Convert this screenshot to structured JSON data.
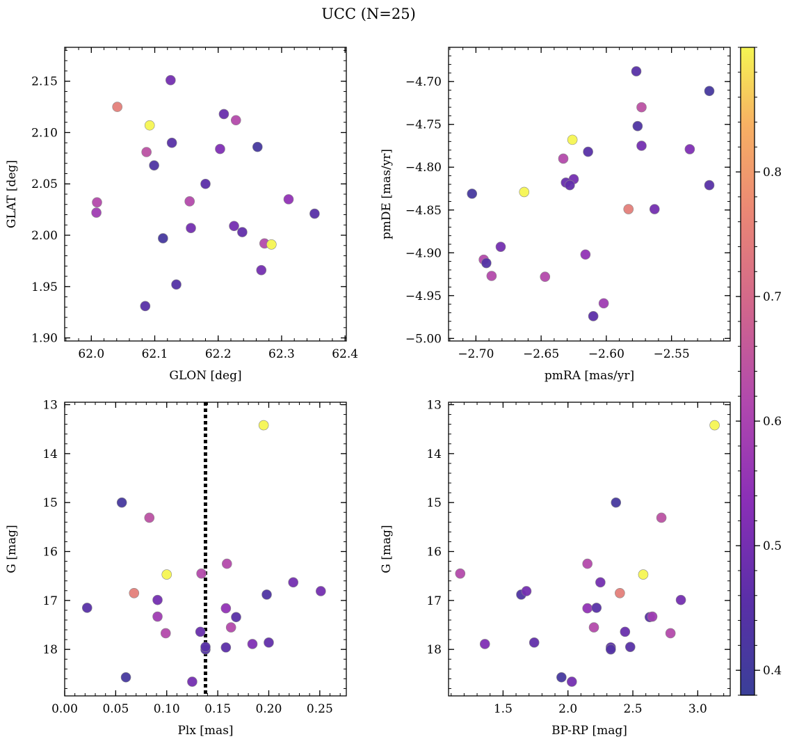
{
  "chart_data": {
    "type": "scatter",
    "title": "UCC (N=25)",
    "colorbar": {
      "range": [
        0.38,
        0.9
      ],
      "ticks": [
        "0.4",
        "0.5",
        "0.6",
        "0.7",
        "0.8"
      ],
      "tick_values": [
        0.4,
        0.5,
        0.6,
        0.7,
        0.8
      ],
      "colormap": "plasma"
    },
    "stars": [
      {
        "glon": 62.125,
        "glat": 2.151,
        "pmra": -2.625,
        "pmde": -4.814,
        "plx": 0.091,
        "g": 16.99,
        "bprp": 2.87,
        "c": 0.5
      },
      {
        "glon": 62.041,
        "glat": 2.125,
        "pmra": -2.583,
        "pmde": -4.849,
        "plx": 0.068,
        "g": 16.85,
        "bprp": 2.4,
        "c": 0.75
      },
      {
        "glon": 62.092,
        "glat": 2.107,
        "pmra": -2.663,
        "pmde": -4.829,
        "plx": 0.1,
        "g": 16.47,
        "bprp": 2.58,
        "c": 0.9
      },
      {
        "glon": 62.209,
        "glat": 2.118,
        "pmra": -2.631,
        "pmde": -4.818,
        "plx": 0.133,
        "g": 17.64,
        "bprp": 2.44,
        "c": 0.48
      },
      {
        "glon": 62.228,
        "glat": 2.112,
        "pmra": -2.633,
        "pmde": -4.79,
        "plx": 0.134,
        "g": 16.45,
        "bprp": 1.17,
        "c": 0.62
      },
      {
        "glon": 62.087,
        "glat": 2.081,
        "pmra": -2.573,
        "pmde": -4.73,
        "plx": 0.083,
        "g": 15.31,
        "bprp": 2.72,
        "c": 0.64
      },
      {
        "glon": 62.127,
        "glat": 2.09,
        "pmra": -2.614,
        "pmde": -4.782,
        "plx": 0.168,
        "g": 17.34,
        "bprp": 2.63,
        "c": 0.45
      },
      {
        "glon": 62.203,
        "glat": 2.084,
        "pmra": -2.536,
        "pmde": -4.779,
        "plx": 0.184,
        "g": 17.89,
        "bprp": 1.36,
        "c": 0.52
      },
      {
        "glon": 62.262,
        "glat": 2.086,
        "pmra": -2.521,
        "pmde": -4.711,
        "plx": 0.056,
        "g": 15.0,
        "bprp": 2.37,
        "c": 0.41
      },
      {
        "glon": 62.099,
        "glat": 2.068,
        "pmra": -2.576,
        "pmde": -4.752,
        "plx": 0.198,
        "g": 16.88,
        "bprp": 1.64,
        "c": 0.43
      },
      {
        "glon": 62.009,
        "glat": 2.032,
        "pmra": -2.694,
        "pmde": -4.908,
        "plx": 0.159,
        "g": 16.25,
        "bprp": 2.15,
        "c": 0.62
      },
      {
        "glon": 62.008,
        "glat": 2.022,
        "pmra": -2.602,
        "pmde": -4.959,
        "plx": 0.091,
        "g": 17.33,
        "bprp": 2.65,
        "c": 0.58
      },
      {
        "glon": 62.18,
        "glat": 2.05,
        "pmra": -2.61,
        "pmde": -4.974,
        "plx": 0.158,
        "g": 17.96,
        "bprp": 2.33,
        "c": 0.46
      },
      {
        "glon": 62.155,
        "glat": 2.033,
        "pmra": -2.647,
        "pmde": -4.928,
        "plx": 0.163,
        "g": 17.55,
        "bprp": 2.2,
        "c": 0.62
      },
      {
        "glon": 62.311,
        "glat": 2.035,
        "pmra": -2.616,
        "pmde": -4.902,
        "plx": 0.158,
        "g": 17.16,
        "bprp": 2.15,
        "c": 0.55
      },
      {
        "glon": 62.352,
        "glat": 2.021,
        "pmra": -2.521,
        "pmde": -4.821,
        "plx": 0.022,
        "g": 17.15,
        "bprp": 2.22,
        "c": 0.45
      },
      {
        "glon": 62.157,
        "glat": 2.007,
        "pmra": -2.563,
        "pmde": -4.849,
        "plx": 0.224,
        "g": 16.63,
        "bprp": 2.25,
        "c": 0.5
      },
      {
        "glon": 62.225,
        "glat": 2.009,
        "pmra": -2.573,
        "pmde": -4.775,
        "plx": 0.251,
        "g": 16.81,
        "bprp": 1.68,
        "c": 0.5
      },
      {
        "glon": 62.238,
        "glat": 2.003,
        "pmra": -2.628,
        "pmde": -4.821,
        "plx": 0.2,
        "g": 17.86,
        "bprp": 1.74,
        "c": 0.47
      },
      {
        "glon": 62.113,
        "glat": 1.997,
        "pmra": -2.703,
        "pmde": -4.831,
        "plx": 0.06,
        "g": 18.57,
        "bprp": 1.95,
        "c": 0.41
      },
      {
        "glon": 62.273,
        "glat": 1.992,
        "pmra": -2.688,
        "pmde": -4.927,
        "plx": 0.099,
        "g": 17.67,
        "bprp": 2.79,
        "c": 0.62
      },
      {
        "glon": 62.284,
        "glat": 1.991,
        "pmra": -2.626,
        "pmde": -4.768,
        "plx": 0.195,
        "g": 13.42,
        "bprp": 3.13,
        "c": 0.9
      },
      {
        "glon": 62.268,
        "glat": 1.966,
        "pmra": -2.681,
        "pmde": -4.893,
        "plx": 0.125,
        "g": 18.66,
        "bprp": 2.03,
        "c": 0.5
      },
      {
        "glon": 62.134,
        "glat": 1.952,
        "pmra": -2.692,
        "pmde": -4.912,
        "plx": 0.138,
        "g": 18.0,
        "bprp": 2.33,
        "c": 0.44
      },
      {
        "glon": 62.085,
        "glat": 1.931,
        "pmra": -2.577,
        "pmde": -4.688,
        "plx": 0.138,
        "g": 17.95,
        "bprp": 2.48,
        "c": 0.45
      }
    ],
    "panels": [
      {
        "id": "glon-glat",
        "xkey": "glon",
        "ykey": "glat",
        "xlabel": "GLON [deg]",
        "ylabel": "GLAT [deg]",
        "xlim": [
          61.958,
          62.402
        ],
        "ylim": [
          1.897,
          2.183
        ],
        "xticks": [
          62.0,
          62.1,
          62.2,
          62.3,
          62.4
        ],
        "xtick_labels": [
          "62.0",
          "62.1",
          "62.2",
          "62.3",
          "62.4"
        ],
        "yticks": [
          1.9,
          1.95,
          2.0,
          2.05,
          2.1,
          2.15
        ],
        "ytick_labels": [
          "1.90",
          "1.95",
          "2.00",
          "2.05",
          "2.10",
          "2.15"
        ],
        "invert_y": false
      },
      {
        "id": "pm",
        "xkey": "pmra",
        "ykey": "pmde",
        "xlabel": "pmRA [mas/yr]",
        "ylabel": "pmDE [mas/yr]",
        "xlim": [
          -2.721,
          -2.505
        ],
        "ylim": [
          -5.003,
          -4.66
        ],
        "xticks": [
          -2.7,
          -2.65,
          -2.6,
          -2.55
        ],
        "xtick_labels": [
          "−2.70",
          "−2.65",
          "−2.60",
          "−2.55"
        ],
        "yticks": [
          -5.0,
          -4.95,
          -4.9,
          -4.85,
          -4.8,
          -4.75,
          -4.7
        ],
        "ytick_labels": [
          "−5.00",
          "−4.95",
          "−4.90",
          "−4.85",
          "−4.80",
          "−4.75",
          "−4.70"
        ],
        "invert_y": false
      },
      {
        "id": "plx-g",
        "xkey": "plx",
        "ykey": "g",
        "xlabel": "Plx [mas]",
        "ylabel": "G [mag]",
        "xlim": [
          0.0,
          0.276
        ],
        "ylim": [
          12.95,
          18.95
        ],
        "xticks": [
          0.0,
          0.05,
          0.1,
          0.15,
          0.2,
          0.25
        ],
        "xtick_labels": [
          "0.00",
          "0.05",
          "0.10",
          "0.15",
          "0.20",
          "0.25"
        ],
        "yticks": [
          13,
          14,
          15,
          16,
          17,
          18
        ],
        "ytick_labels": [
          "13",
          "14",
          "15",
          "16",
          "17",
          "18"
        ],
        "invert_y": true,
        "vline": 0.138
      },
      {
        "id": "bprp-g",
        "xkey": "bprp",
        "ykey": "g",
        "xlabel": "BP-RP [mag]",
        "ylabel": "G [mag]",
        "xlim": [
          1.08,
          3.25
        ],
        "ylim": [
          12.95,
          18.95
        ],
        "xticks": [
          1.5,
          2.0,
          2.5,
          3.0
        ],
        "xtick_labels": [
          "1.5",
          "2.0",
          "2.5",
          "3.0"
        ],
        "yticks": [
          13,
          14,
          15,
          16,
          17,
          18
        ],
        "ytick_labels": [
          "13",
          "14",
          "15",
          "16",
          "17",
          "18"
        ],
        "invert_y": true
      }
    ]
  }
}
